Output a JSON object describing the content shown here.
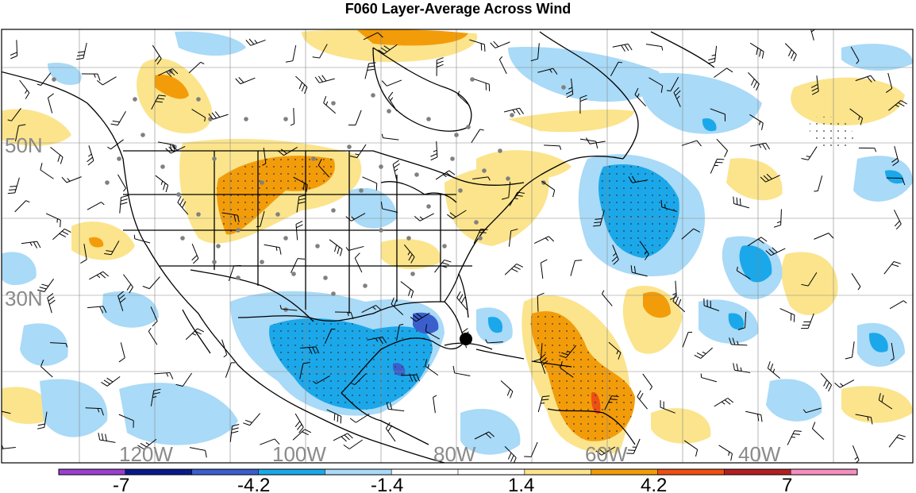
{
  "title": "F060 Layer-Average Across Wind",
  "latitude_labels": [
    "50N",
    "30N"
  ],
  "longitude_labels": [
    "120W",
    "100W",
    "80W",
    "60W",
    "40W"
  ],
  "colorbar": {
    "labels": [
      "-7",
      "-4.2",
      "-1.4",
      "1.4",
      "4.2",
      "7"
    ],
    "colors": [
      "#9b3fd0",
      "#0a1a8c",
      "#3a5fcd",
      "#1ba8ea",
      "#a9daf7",
      "#ffffff",
      "#ffffff",
      "#fbe48c",
      "#f39c0a",
      "#ee4f14",
      "#b41f22",
      "#f58fbf"
    ]
  },
  "fill_colors": {
    "light_blue": "#a9daf7",
    "medium_blue": "#1ba8ea",
    "dark_blue": "#3a5fcd",
    "light_yellow": "#fbe48c",
    "orange": "#f39c0a",
    "red": "#ee4f14",
    "dark_red": "#b41f22"
  }
}
